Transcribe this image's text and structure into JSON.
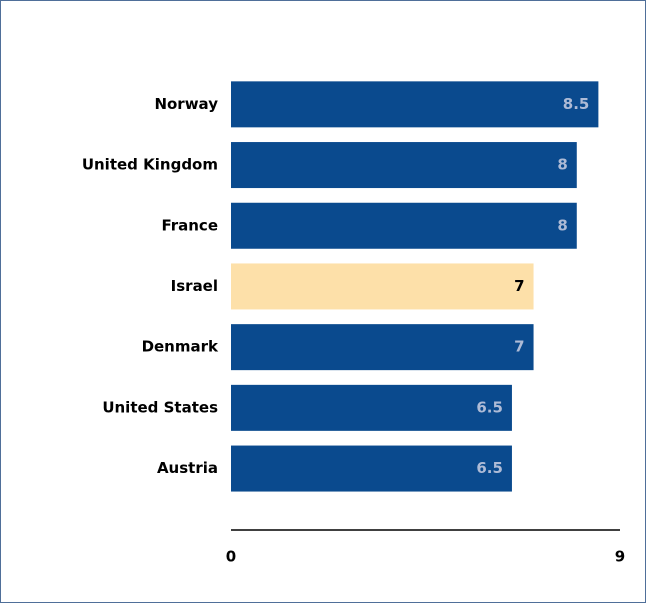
{
  "chart_data": {
    "type": "hbar",
    "categories": [
      "Norway",
      "United Kingdom",
      "France",
      "Israel",
      "Denmark",
      "United States",
      "Austria"
    ],
    "values": [
      8.5,
      8,
      8,
      7,
      7,
      6.5,
      6.5
    ],
    "colors": [
      "#0a4a8e",
      "#0a4a8e",
      "#0a4a8e",
      "#fde0a9",
      "#0a4a8e",
      "#0a4a8e",
      "#0a4a8e"
    ],
    "label_colors": [
      "#aebbd6",
      "#aebbd6",
      "#aebbd6",
      "#000000",
      "#aebbd6",
      "#aebbd6",
      "#aebbd6"
    ],
    "xlim": [
      0,
      9
    ],
    "xticks": [
      0,
      9
    ],
    "grid": false
  }
}
